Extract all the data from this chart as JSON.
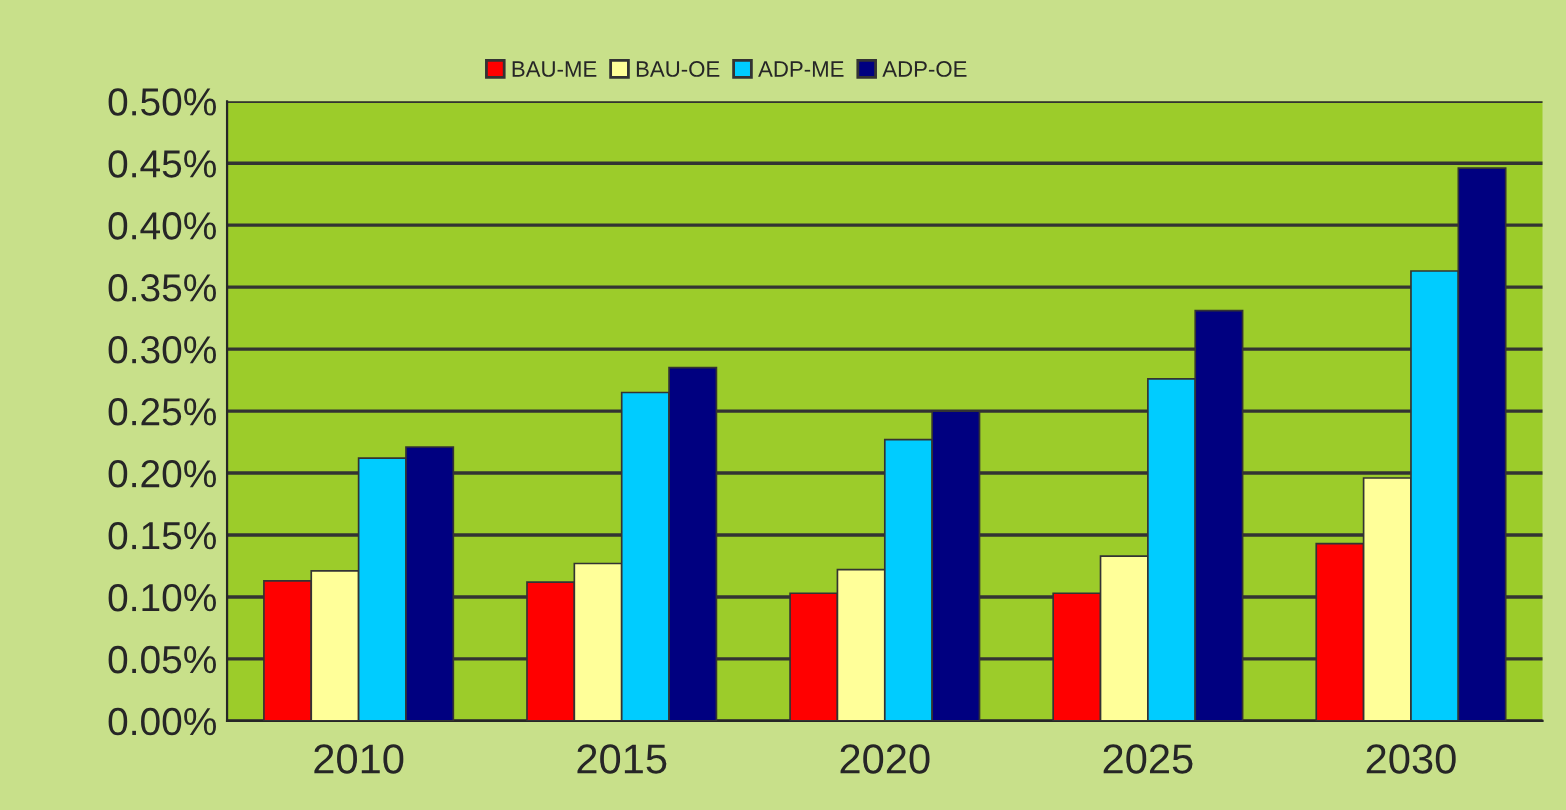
{
  "chart_data": {
    "type": "bar",
    "categories": [
      "2010",
      "2015",
      "2020",
      "2025",
      "2030"
    ],
    "series": [
      {
        "name": "BAU-ME",
        "color": "#ff0000",
        "values": [
          0.113,
          0.112,
          0.103,
          0.103,
          0.143
        ]
      },
      {
        "name": "BAU-OE",
        "color": "#ffff99",
        "values": [
          0.121,
          0.127,
          0.122,
          0.133,
          0.196
        ]
      },
      {
        "name": "ADP-ME",
        "color": "#00ccff",
        "values": [
          0.212,
          0.265,
          0.227,
          0.276,
          0.363
        ]
      },
      {
        "name": "ADP-OE",
        "color": "#000080",
        "values": [
          0.221,
          0.285,
          0.25,
          0.331,
          0.446
        ]
      }
    ],
    "ylim": [
      0,
      0.5
    ],
    "yticks": [
      {
        "value": 0,
        "label": "0.00%"
      },
      {
        "value": 0.05,
        "label": "0.05%"
      },
      {
        "value": 0.1,
        "label": "0.10%"
      },
      {
        "value": 0.15,
        "label": "0.15%"
      },
      {
        "value": 0.2,
        "label": "0.20%"
      },
      {
        "value": 0.25,
        "label": "0.25%"
      },
      {
        "value": 0.3,
        "label": "0.30%"
      },
      {
        "value": 0.35,
        "label": "0.35%"
      },
      {
        "value": 0.4,
        "label": "0.40%"
      },
      {
        "value": 0.45,
        "label": "0.45%"
      },
      {
        "value": 0.5,
        "label": "0.50%"
      }
    ],
    "grid": "y",
    "legend": "top"
  }
}
